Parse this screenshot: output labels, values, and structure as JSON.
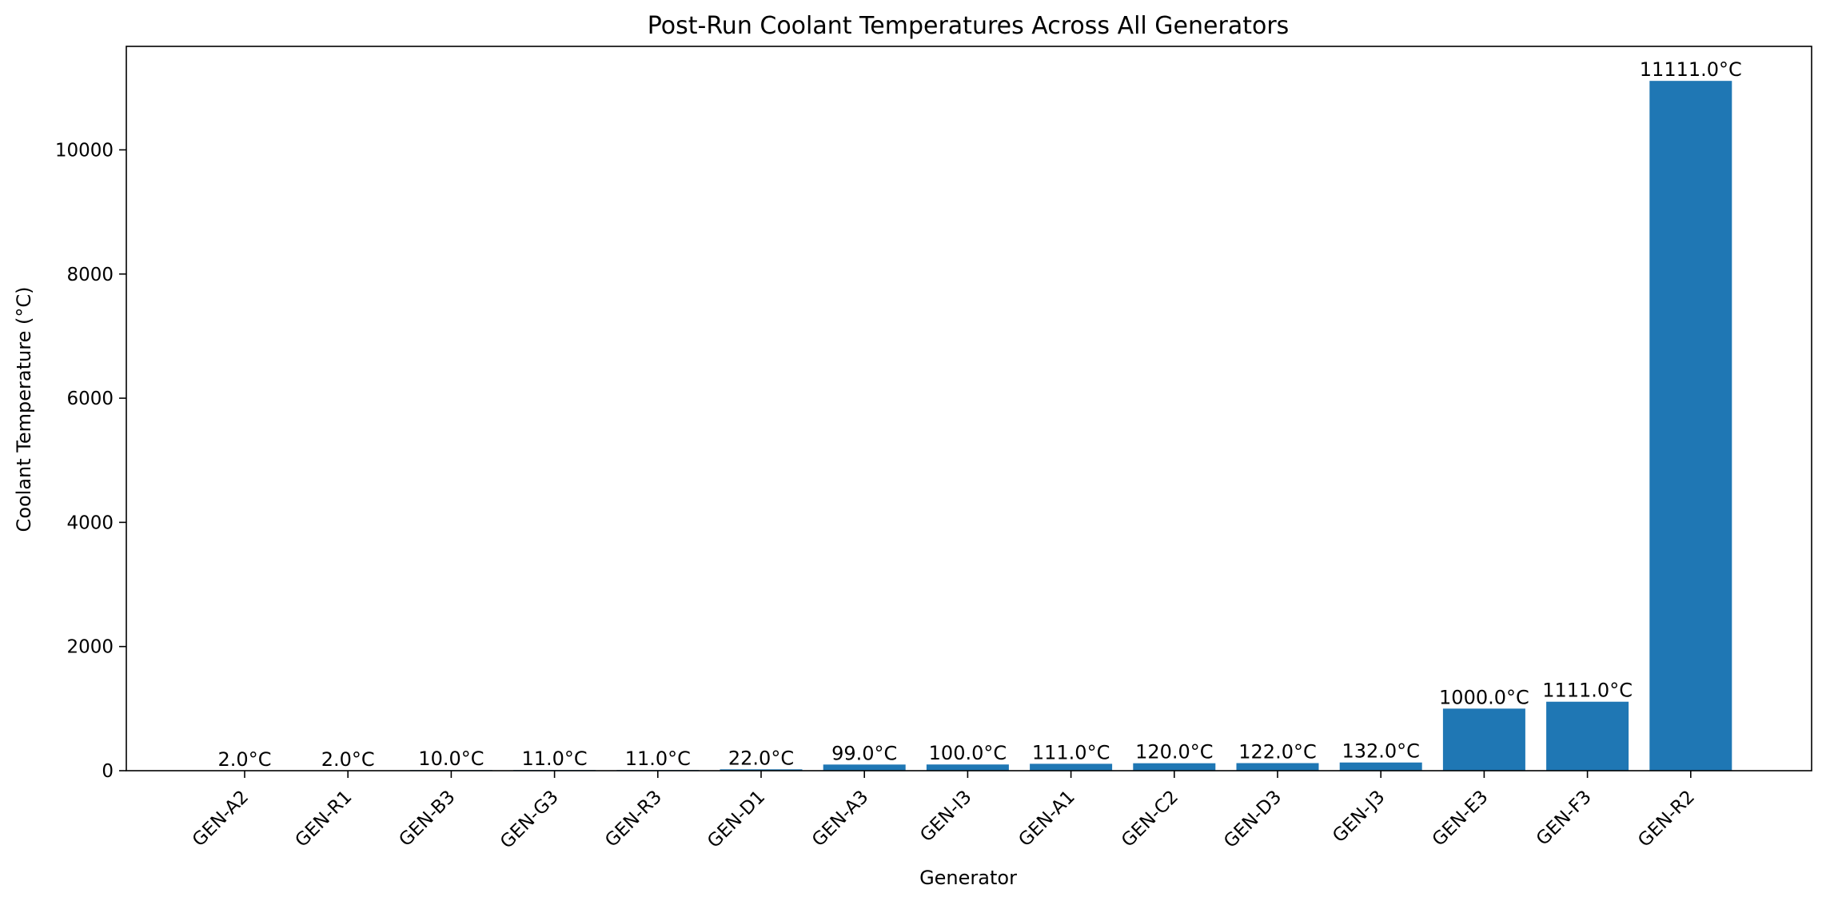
{
  "chart_data": {
    "type": "bar",
    "title": "Post-Run Coolant Temperatures Across All Generators",
    "xlabel": "Generator",
    "ylabel": "Coolant Temperature (°C)",
    "categories": [
      "GEN-A2",
      "GEN-R1",
      "GEN-B3",
      "GEN-G3",
      "GEN-R3",
      "GEN-D1",
      "GEN-A3",
      "GEN-I3",
      "GEN-A1",
      "GEN-C2",
      "GEN-D3",
      "GEN-J3",
      "GEN-E3",
      "GEN-F3",
      "GEN-R2"
    ],
    "values": [
      2.0,
      2.0,
      10.0,
      11.0,
      11.0,
      22.0,
      99.0,
      100.0,
      111.0,
      120.0,
      122.0,
      132.0,
      1000.0,
      1111.0,
      11111.0
    ],
    "data_labels": [
      "2.0°C",
      "2.0°C",
      "10.0°C",
      "11.0°C",
      "11.0°C",
      "22.0°C",
      "99.0°C",
      "100.0°C",
      "111.0°C",
      "120.0°C",
      "122.0°C",
      "132.0°C",
      "1000.0°C",
      "1111.0°C",
      "11111.0°C"
    ],
    "yticks": [
      0,
      2000,
      4000,
      6000,
      8000,
      10000
    ],
    "ylim": [
      0,
      11667
    ],
    "grid": false,
    "colors": {
      "bar": "#1f77b4",
      "axis": "#000000"
    }
  }
}
